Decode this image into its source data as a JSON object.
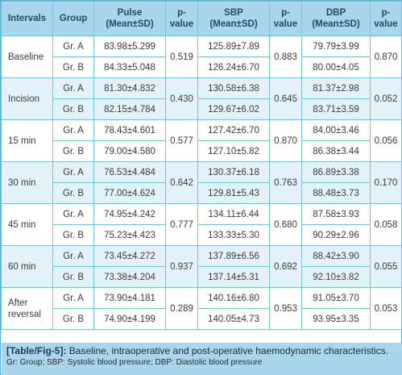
{
  "table": {
    "headers": {
      "intervals": "Intervals",
      "group": "Group",
      "pulse_l1": "Pulse",
      "pulse_l2": "(Mean±SD)",
      "pval1_l1": "p-",
      "pval1_l2": "value",
      "sbp_l1": "SBP",
      "sbp_l2": "(Mean±SD)",
      "pval2_l1": "p-",
      "pval2_l2": "value",
      "dbp_l1": "DBP",
      "dbp_l2": "(Mean±SD)",
      "pval3_l1": "p-",
      "pval3_l2": "value"
    },
    "rows": [
      {
        "interval_l1": "Baseline",
        "interval_l2": "",
        "a": {
          "group": "Gr. A",
          "pulse": "83.98±5.299",
          "sbp": "125.89±7.89",
          "dbp": "79.79±3.99"
        },
        "b": {
          "group": "Gr. B",
          "pulse": "84.33±5.048",
          "sbp": "126.24±6.70",
          "dbp": "80.00±4.05"
        },
        "p_pulse": "0.519",
        "p_sbp": "0.883",
        "p_dbp": "0.870"
      },
      {
        "interval_l1": "Incision",
        "interval_l2": "",
        "a": {
          "group": "Gr. A",
          "pulse": "81.30±4.832",
          "sbp": "130.58±6.38",
          "dbp": "81.37±2.98"
        },
        "b": {
          "group": "Gr. B",
          "pulse": "82.15±4.784",
          "sbp": "129.67±6.02",
          "dbp": "83.71±3.59"
        },
        "p_pulse": "0.430",
        "p_sbp": "0.645",
        "p_dbp": "0.052"
      },
      {
        "interval_l1": "15 min",
        "interval_l2": "",
        "a": {
          "group": "Gr. A",
          "pulse": "78.43±4.601",
          "sbp": "127.42±6.70",
          "dbp": "84.00±3.46"
        },
        "b": {
          "group": "Gr. B",
          "pulse": "79.00±4.580",
          "sbp": "127.10±5.82",
          "dbp": "86.38±3.44"
        },
        "p_pulse": "0.577",
        "p_sbp": "0.870",
        "p_dbp": "0.056"
      },
      {
        "interval_l1": "30 min",
        "interval_l2": "",
        "a": {
          "group": "Gr. A",
          "pulse": "76.53±4.484",
          "sbp": "130.37±6.18",
          "dbp": "86.89±3.38"
        },
        "b": {
          "group": "Gr. B",
          "pulse": "77.00±4.624",
          "sbp": "129.81±5.43",
          "dbp": "88.48±3.73"
        },
        "p_pulse": "0.642",
        "p_sbp": "0.763",
        "p_dbp": "0.170"
      },
      {
        "interval_l1": "45 min",
        "interval_l2": "",
        "a": {
          "group": "Gr. A",
          "pulse": "74.95±4.242",
          "sbp": "134.11±6.44",
          "dbp": "87.58±3.93"
        },
        "b": {
          "group": "Gr. B",
          "pulse": "75.23±4.423",
          "sbp": "133.33±5.30",
          "dbp": "90.29±2.96"
        },
        "p_pulse": "0.777",
        "p_sbp": "0.680",
        "p_dbp": "0.058"
      },
      {
        "interval_l1": "60 min",
        "interval_l2": "",
        "a": {
          "group": "Gr. A",
          "pulse": "73.45±4.272",
          "sbp": "137.89±6.56",
          "dbp": "88.42±3.90"
        },
        "b": {
          "group": "Gr. B",
          "pulse": "73.38±4.204",
          "sbp": "137.14±5.31",
          "dbp": "92.10±3.82"
        },
        "p_pulse": "0.937",
        "p_sbp": "0.692",
        "p_dbp": "0.055"
      },
      {
        "interval_l1": "After",
        "interval_l2": "reversal",
        "a": {
          "group": "Gr. A",
          "pulse": "73.90±4.181",
          "sbp": "140.16±6.80",
          "dbp": "91.05±3.70"
        },
        "b": {
          "group": "Gr. B",
          "pulse": "74.90±4.199",
          "sbp": "140.05±4.73",
          "dbp": "93.95±3.35"
        },
        "p_pulse": "0.289",
        "p_sbp": "0.953",
        "p_dbp": "0.053"
      }
    ]
  },
  "caption": {
    "tag": "[Table/Fig-5]:",
    "text": "Baseline, intraoperative and post-operative haemodynamic characteristics.",
    "abbreviations": "Gr: Group; SBP: Systolic blood pressure; DBP: Diastolic blood pressure"
  }
}
